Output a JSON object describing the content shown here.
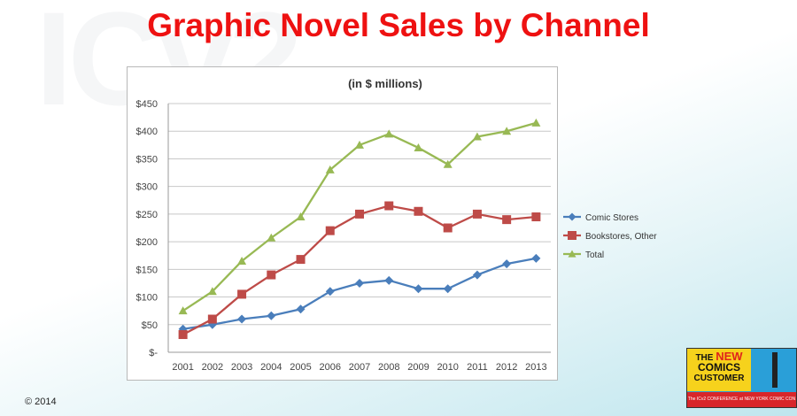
{
  "page": {
    "title": "Graphic Novel Sales by Channel",
    "watermark": "ICv2",
    "copyright": "© 2014",
    "logo": {
      "line1": "THE",
      "line2": "NEW",
      "line3": "COMICS",
      "line4": "CUSTOMER",
      "tagline": "The ICv2 CONFERENCE at NEW YORK COMIC CON"
    }
  },
  "chart_data": {
    "type": "line",
    "title": "(in $ millions)",
    "xlabel": "",
    "ylabel": "",
    "categories": [
      "2001",
      "2002",
      "2003",
      "2004",
      "2005",
      "2006",
      "2007",
      "2008",
      "2009",
      "2010",
      "2011",
      "2012",
      "2013"
    ],
    "ylim": [
      0,
      450
    ],
    "yticks": [
      0,
      50,
      100,
      150,
      200,
      250,
      300,
      350,
      400,
      450
    ],
    "ytick_labels": [
      "$-",
      "$50",
      "$100",
      "$150",
      "$200",
      "$250",
      "$300",
      "$350",
      "$400",
      "$450"
    ],
    "grid": true,
    "legend_position": "right",
    "series": [
      {
        "name": "Comic Stores",
        "color": "#4a7ebb",
        "marker": "diamond",
        "values": [
          42,
          50,
          60,
          66,
          78,
          110,
          125,
          130,
          115,
          115,
          140,
          160,
          170
        ]
      },
      {
        "name": "Bookstores, Other",
        "color": "#be4b48",
        "marker": "square",
        "values": [
          32,
          60,
          105,
          140,
          168,
          220,
          250,
          265,
          255,
          225,
          250,
          240,
          245
        ]
      },
      {
        "name": "Total",
        "color": "#98b954",
        "marker": "triangle",
        "values": [
          75,
          110,
          165,
          207,
          245,
          330,
          375,
          395,
          370,
          340,
          390,
          400,
          415
        ]
      }
    ]
  }
}
